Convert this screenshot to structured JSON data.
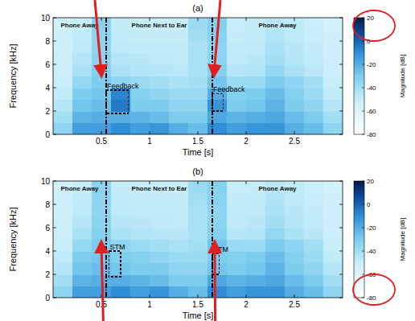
{
  "chart_data": [
    {
      "type": "heatmap",
      "title": "(a)",
      "xlabel": "Time [s]",
      "ylabel": "Frequency [kHz]",
      "xlim": [
        0,
        3
      ],
      "ylim": [
        0,
        10
      ],
      "xticks": [
        0.5,
        1,
        1.5,
        2,
        2.5
      ],
      "yticks": [
        0,
        2,
        4,
        6,
        8,
        10
      ],
      "x_edges": [
        0,
        0.2,
        0.4,
        0.6,
        0.8,
        1.0,
        1.2,
        1.4,
        1.6,
        1.8,
        2.0,
        2.2,
        2.4,
        2.6,
        2.8,
        3.0
      ],
      "y_edges": [
        0,
        1,
        2,
        3,
        4,
        5,
        6,
        7,
        8,
        9,
        10
      ],
      "cells": [
        [
          -35,
          -15,
          -15,
          -10,
          -15,
          -12,
          -20,
          -25,
          -10,
          -15,
          -12,
          -12,
          -20,
          -25,
          -35
        ],
        [
          -40,
          -22,
          -20,
          -20,
          -22,
          -25,
          -30,
          -30,
          -18,
          -22,
          -20,
          -18,
          -25,
          -30,
          -40
        ],
        [
          -45,
          -28,
          -25,
          -5,
          -30,
          -30,
          -35,
          -35,
          -12,
          -30,
          -28,
          -22,
          -30,
          -35,
          -45
        ],
        [
          -48,
          -30,
          -28,
          -8,
          -32,
          -35,
          -38,
          -38,
          -20,
          -32,
          -30,
          -25,
          -32,
          -38,
          -48
        ],
        [
          -50,
          -36,
          -30,
          -35,
          -38,
          -40,
          -42,
          -40,
          -28,
          -38,
          -38,
          -30,
          -35,
          -40,
          -50
        ],
        [
          -52,
          -42,
          -32,
          -42,
          -44,
          -45,
          -46,
          -42,
          -32,
          -45,
          -44,
          -36,
          -42,
          -46,
          -52
        ],
        [
          -52,
          -45,
          -34,
          -45,
          -46,
          -47,
          -48,
          -42,
          -34,
          -47,
          -46,
          -40,
          -45,
          -48,
          -52
        ],
        [
          -53,
          -47,
          -35,
          -47,
          -48,
          -48,
          -48,
          -42,
          -35,
          -48,
          -47,
          -42,
          -46,
          -49,
          -53
        ],
        [
          -54,
          -48,
          -35,
          -48,
          -49,
          -49,
          -49,
          -40,
          -33,
          -49,
          -48,
          -44,
          -47,
          -50,
          -54
        ],
        [
          -55,
          -50,
          -34,
          -49,
          -50,
          -50,
          -50,
          -38,
          -32,
          -50,
          -49,
          -46,
          -48,
          -51,
          -55
        ]
      ],
      "colorbar": {
        "label": "Magnitude [dB]",
        "range": [
          -80,
          20
        ],
        "ticks": [
          20,
          0,
          -20,
          -40,
          -60,
          -80
        ]
      },
      "events": [
        0.55,
        1.65
      ],
      "segments": [
        {
          "label": "Phone Away",
          "x": [
            0,
            0.55
          ]
        },
        {
          "label": "Phone Next to Ear",
          "x": [
            0.55,
            1.65
          ]
        },
        {
          "label": "Phone Away",
          "x": [
            1.65,
            3
          ]
        }
      ],
      "regions": [
        {
          "label": "Feedback",
          "x": [
            0.55,
            0.78
          ],
          "y": [
            1.8,
            3.8
          ]
        },
        {
          "label": "Feedback",
          "x": [
            1.65,
            1.76
          ],
          "y": [
            2,
            3.5
          ]
        }
      ]
    },
    {
      "type": "heatmap",
      "title": "(b)",
      "xlabel": "Time [s]",
      "ylabel": "Frequency [kHz]",
      "xlim": [
        0,
        3
      ],
      "ylim": [
        0,
        10
      ],
      "xticks": [
        0.5,
        1,
        1.5,
        2,
        2.5
      ],
      "yticks": [
        0,
        2,
        4,
        6,
        8,
        10
      ],
      "x_edges": [
        0,
        0.2,
        0.4,
        0.6,
        0.8,
        1.0,
        1.2,
        1.4,
        1.6,
        1.8,
        2.0,
        2.2,
        2.4,
        2.6,
        2.8,
        3.0
      ],
      "y_edges": [
        0,
        1,
        2,
        3,
        4,
        5,
        6,
        7,
        8,
        9,
        10
      ],
      "cells": [
        [
          -35,
          -15,
          -15,
          -10,
          -15,
          -12,
          -20,
          -25,
          -10,
          -15,
          -12,
          -12,
          -20,
          -25,
          -35
        ],
        [
          -40,
          -22,
          -20,
          -20,
          -22,
          -25,
          -30,
          -30,
          -18,
          -22,
          -20,
          -18,
          -25,
          -30,
          -40
        ],
        [
          -45,
          -28,
          -25,
          -28,
          -30,
          -30,
          -35,
          -35,
          -28,
          -30,
          -28,
          -22,
          -30,
          -35,
          -45
        ],
        [
          -48,
          -30,
          -28,
          -31,
          -32,
          -35,
          -38,
          -38,
          -30,
          -32,
          -30,
          -25,
          -32,
          -38,
          -48
        ],
        [
          -50,
          -36,
          -30,
          -35,
          -38,
          -40,
          -42,
          -40,
          -28,
          -38,
          -38,
          -30,
          -35,
          -40,
          -50
        ],
        [
          -52,
          -42,
          -32,
          -42,
          -44,
          -45,
          -46,
          -42,
          -32,
          -45,
          -44,
          -36,
          -42,
          -46,
          -52
        ],
        [
          -52,
          -45,
          -34,
          -45,
          -46,
          -47,
          -48,
          -42,
          -34,
          -47,
          -46,
          -40,
          -45,
          -48,
          -52
        ],
        [
          -53,
          -47,
          -35,
          -47,
          -48,
          -48,
          -48,
          -42,
          -35,
          -48,
          -47,
          -42,
          -46,
          -49,
          -53
        ],
        [
          -54,
          -48,
          -35,
          -48,
          -49,
          -49,
          -49,
          -40,
          -33,
          -49,
          -48,
          -44,
          -47,
          -50,
          -54
        ],
        [
          -55,
          -50,
          -34,
          -49,
          -50,
          -50,
          -50,
          -38,
          -32,
          -50,
          -49,
          -46,
          -48,
          -51,
          -55
        ]
      ],
      "colorbar": {
        "label": "Magnitude [dB]",
        "range": [
          -80,
          20
        ],
        "ticks": [
          20,
          0,
          -20,
          -40,
          -60,
          -80
        ]
      },
      "events": [
        0.55,
        1.65
      ],
      "segments": [
        {
          "label": "Phone Away",
          "x": [
            0,
            0.55
          ]
        },
        {
          "label": "Phone Next to Ear",
          "x": [
            0.55,
            1.65
          ]
        },
        {
          "label": "Phone Away",
          "x": [
            1.65,
            3
          ]
        }
      ],
      "regions": [
        {
          "label": "STM",
          "x": [
            0.58,
            0.7
          ],
          "y": [
            1.8,
            4
          ]
        },
        {
          "label": "STM",
          "x": [
            1.65,
            1.72
          ],
          "y": [
            2,
            3.8
          ]
        }
      ]
    }
  ]
}
